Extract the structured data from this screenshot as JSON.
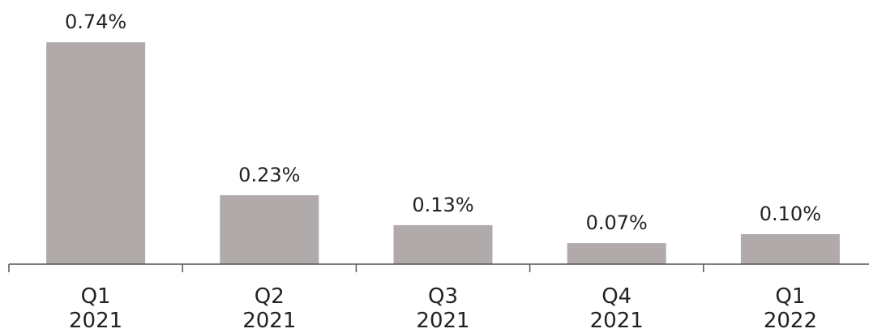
{
  "chart_data": {
    "type": "bar",
    "title": "",
    "xlabel": "",
    "ylabel": "",
    "categories": [
      [
        "Q1",
        "2021"
      ],
      [
        "Q2",
        "2021"
      ],
      [
        "Q3",
        "2021"
      ],
      [
        "Q4",
        "2021"
      ],
      [
        "Q1",
        "2022"
      ]
    ],
    "values": [
      0.74,
      0.23,
      0.13,
      0.07,
      0.1
    ],
    "value_labels": [
      "0.74%",
      "0.23%",
      "0.13%",
      "0.07%",
      "0.10%"
    ],
    "ylim": [
      0,
      0.8
    ],
    "grid": false,
    "bar_color": "#b0abaa",
    "title_color": "#2a5868"
  }
}
